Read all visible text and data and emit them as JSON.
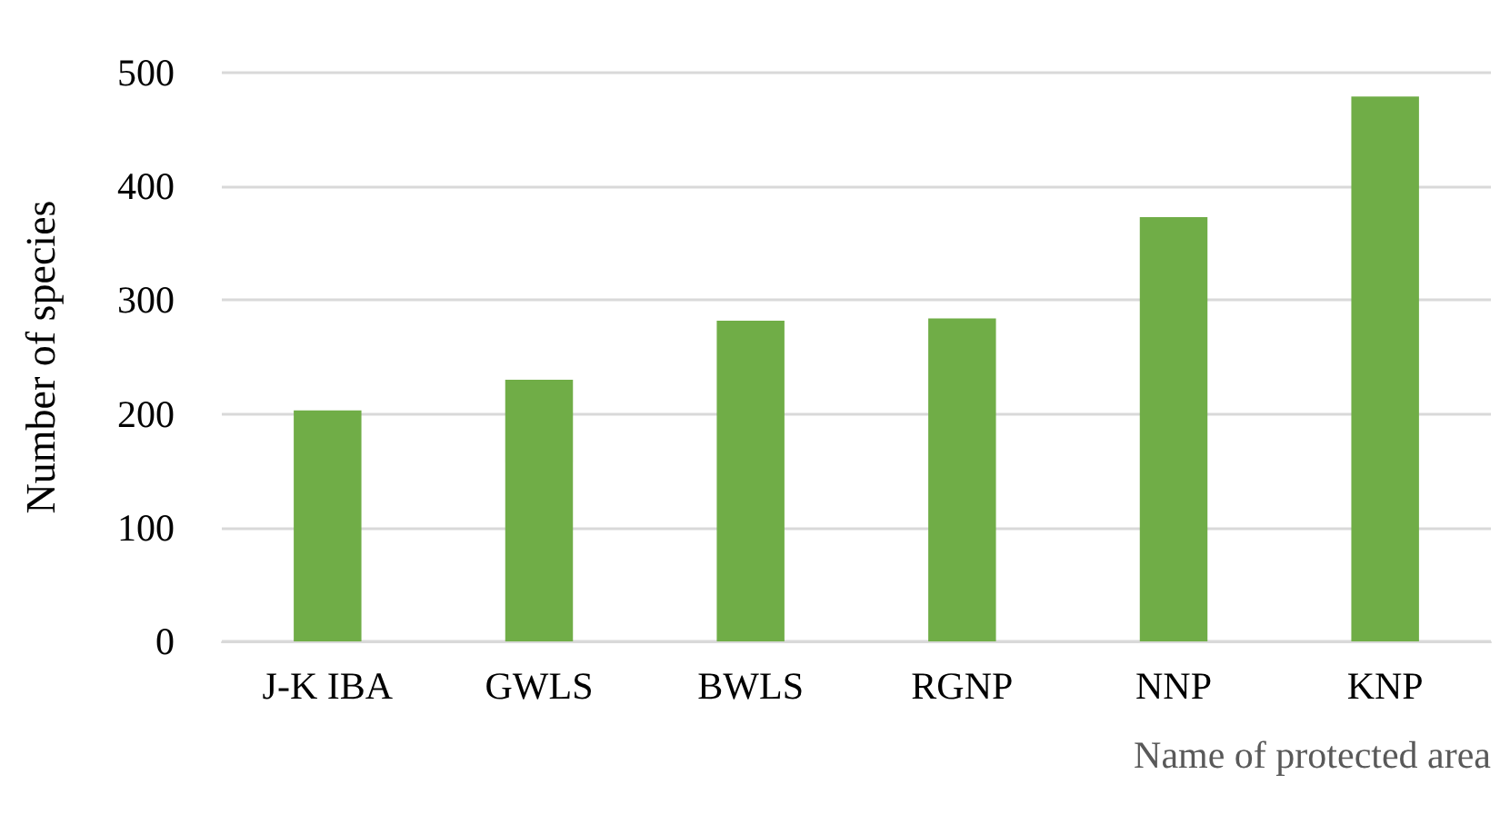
{
  "chart_data": {
    "type": "bar",
    "xlabel": "Name of protected area",
    "ylabel": "Number of species",
    "categories": [
      "J-K IBA",
      "GWLS",
      "BWLS",
      "RGNP",
      "NNP",
      "KNP"
    ],
    "values": [
      203,
      230,
      282,
      284,
      373,
      479
    ],
    "color": "#70ad47",
    "ylim": [
      0,
      500
    ],
    "yticks": [
      0,
      100,
      200,
      300,
      400,
      500
    ],
    "grid": "y"
  }
}
